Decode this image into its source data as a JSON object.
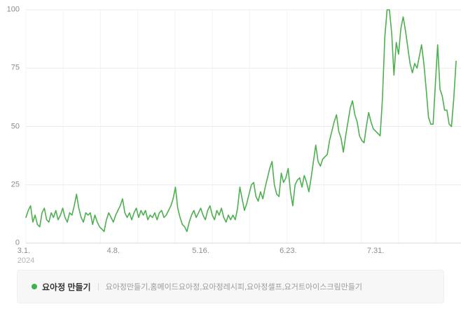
{
  "chart_data": {
    "type": "line",
    "title": "",
    "xlabel": "",
    "ylabel": "",
    "ylim": [
      0,
      100
    ],
    "y_ticks": [
      0,
      25,
      50,
      75,
      100
    ],
    "x_ticks": [
      {
        "label": "3.1.",
        "sublabel": "2024",
        "index": 0
      },
      {
        "label": "4.8.",
        "index": 38
      },
      {
        "label": "5.16.",
        "index": 76
      },
      {
        "label": "6.23.",
        "index": 114
      },
      {
        "label": "7.31.",
        "index": 152
      }
    ],
    "grid": true,
    "legend_position": "bottom",
    "x": [
      "3.1",
      "3.2",
      "3.3",
      "3.4",
      "3.5",
      "3.6",
      "3.7",
      "3.8",
      "3.9",
      "3.10",
      "3.11",
      "3.12",
      "3.13",
      "3.14",
      "3.15",
      "3.16",
      "3.17",
      "3.18",
      "3.19",
      "3.20",
      "3.21",
      "3.22",
      "3.23",
      "3.24",
      "3.25",
      "3.26",
      "3.27",
      "3.28",
      "3.29",
      "3.30",
      "3.31",
      "4.1",
      "4.2",
      "4.3",
      "4.4",
      "4.5",
      "4.6",
      "4.7",
      "4.8",
      "4.9",
      "4.10",
      "4.11",
      "4.12",
      "4.13",
      "4.14",
      "4.15",
      "4.16",
      "4.17",
      "4.18",
      "4.19",
      "4.20",
      "4.21",
      "4.22",
      "4.23",
      "4.24",
      "4.25",
      "4.26",
      "4.27",
      "4.28",
      "4.29",
      "4.30",
      "5.1",
      "5.2",
      "5.3",
      "5.4",
      "5.5",
      "5.6",
      "5.7",
      "5.8",
      "5.9",
      "5.10",
      "5.11",
      "5.12",
      "5.13",
      "5.14",
      "5.15",
      "5.16",
      "5.17",
      "5.18",
      "5.19",
      "5.20",
      "5.21",
      "5.22",
      "5.23",
      "5.24",
      "5.25",
      "5.26",
      "5.27",
      "5.28",
      "5.29",
      "5.30",
      "5.31",
      "6.1",
      "6.2",
      "6.3",
      "6.4",
      "6.5",
      "6.6",
      "6.7",
      "6.8",
      "6.9",
      "6.10",
      "6.11",
      "6.12",
      "6.13",
      "6.14",
      "6.15",
      "6.16",
      "6.17",
      "6.18",
      "6.19",
      "6.20",
      "6.21",
      "6.22",
      "6.23",
      "6.24",
      "6.25",
      "6.26",
      "6.27",
      "6.28",
      "6.29",
      "6.30",
      "7.1",
      "7.2",
      "7.3",
      "7.4",
      "7.5",
      "7.6",
      "7.7",
      "7.8",
      "7.9",
      "7.10",
      "7.11",
      "7.12",
      "7.13",
      "7.14",
      "7.15",
      "7.16",
      "7.17",
      "7.18",
      "7.19",
      "7.20",
      "7.21",
      "7.22",
      "7.23",
      "7.24",
      "7.25",
      "7.26",
      "7.27",
      "7.28",
      "7.29",
      "7.30",
      "7.31",
      "8.1",
      "8.2",
      "8.3",
      "8.4",
      "8.5",
      "8.6",
      "8.7",
      "8.8",
      "8.9",
      "8.10",
      "8.11",
      "8.12",
      "8.13",
      "8.14",
      "8.15",
      "8.16",
      "8.17",
      "8.18",
      "8.19",
      "8.20",
      "8.21",
      "8.22",
      "8.23",
      "8.24",
      "8.25",
      "8.26",
      "8.27",
      "8.28",
      "8.29",
      "8.30",
      "8.31",
      "9.1",
      "9.2",
      "9.3",
      "9.4"
    ],
    "series": [
      {
        "name": "요아정 만들기",
        "color": "#4db04f",
        "values": [
          11,
          14,
          16,
          9,
          12,
          8,
          7,
          13,
          15,
          10,
          9,
          13,
          11,
          14,
          10,
          12,
          15,
          11,
          9,
          13,
          12,
          16,
          21,
          15,
          11,
          9,
          13,
          12,
          13,
          8,
          12,
          9,
          7,
          6,
          5,
          10,
          13,
          11,
          9,
          12,
          14,
          16,
          19,
          13,
          11,
          13,
          10,
          13,
          15,
          11,
          14,
          12,
          14,
          10,
          12,
          11,
          13,
          10,
          13,
          14,
          11,
          12,
          14,
          16,
          19,
          24,
          15,
          11,
          8,
          7,
          5,
          9,
          12,
          14,
          11,
          13,
          15,
          12,
          10,
          14,
          16,
          12,
          10,
          14,
          12,
          15,
          11,
          9,
          12,
          10,
          12,
          10,
          15,
          24,
          19,
          14,
          17,
          21,
          25,
          26,
          20,
          18,
          22,
          19,
          24,
          28,
          32,
          35,
          25,
          21,
          20,
          30,
          26,
          28,
          32,
          22,
          16,
          25,
          27,
          28,
          24,
          29,
          26,
          22,
          28,
          35,
          42,
          35,
          33,
          36,
          37,
          38,
          44,
          48,
          52,
          55,
          48,
          45,
          39,
          46,
          52,
          58,
          61,
          55,
          52,
          46,
          44,
          43,
          50,
          56,
          52,
          49,
          48,
          47,
          46,
          62,
          88,
          100,
          100,
          90,
          72,
          86,
          81,
          92,
          97,
          91,
          84,
          77,
          73,
          77,
          75,
          80,
          85,
          77,
          66,
          54,
          51,
          51,
          68,
          85,
          66,
          63,
          57,
          57,
          51,
          50,
          62,
          78
        ]
      }
    ]
  },
  "legend": {
    "series_label": "요아정 만들기",
    "keywords": "요아정만들기,홈메이드요아정,요아정레시피,요아정셀프,요거트아이스크림만들기"
  },
  "colors": {
    "line": "#4db04f",
    "dot": "#3db14b",
    "grid_h": "#ececec",
    "grid_v": "#f3f3f3",
    "axis": "#dadada",
    "tick_text": "#8c8c8c",
    "sub_tick_text": "#b5b5b5",
    "legend_bg": "#f7f7f8"
  }
}
